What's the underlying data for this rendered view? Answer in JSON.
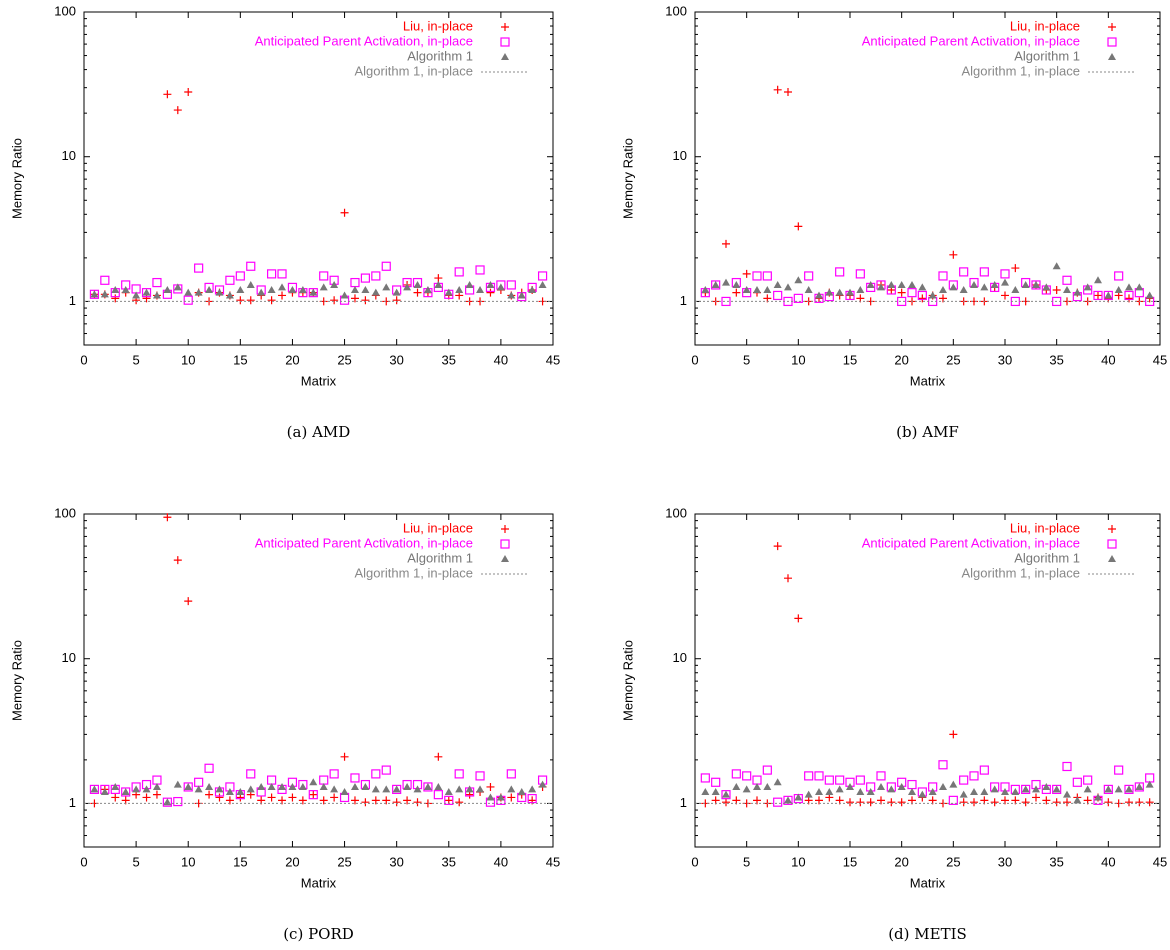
{
  "chart_data": [
    {
      "type": "scatter",
      "caption": "(a) AMD",
      "xlabel": "Matrix",
      "ylabel": "Memory Ratio",
      "ylog": true,
      "legend": "upper right",
      "xlim": [
        0,
        45
      ],
      "xticks": [
        0,
        5,
        10,
        15,
        20,
        25,
        30,
        35,
        40,
        45
      ],
      "ylim": [
        0.5,
        100
      ],
      "yticks": [
        1,
        10,
        100
      ],
      "x": [
        1,
        2,
        3,
        4,
        5,
        6,
        7,
        8,
        9,
        10,
        11,
        12,
        13,
        14,
        15,
        16,
        17,
        18,
        19,
        20,
        21,
        22,
        23,
        24,
        25,
        26,
        27,
        28,
        29,
        30,
        31,
        32,
        33,
        34,
        35,
        36,
        37,
        38,
        39,
        40,
        41,
        42,
        43,
        44
      ],
      "series": [
        {
          "name": "Liu, in-place",
          "color": "#ff0000",
          "marker": "plus",
          "values": [
            1.12,
            1.12,
            1.05,
            1.15,
            1.02,
            1.05,
            1.1,
            27,
            21,
            28,
            1.15,
            1.0,
            1.15,
            1.1,
            1.02,
            1.02,
            1.1,
            1.02,
            1.1,
            1.15,
            1.15,
            1.15,
            1.0,
            1.02,
            4.1,
            1.05,
            1.02,
            1.1,
            1.0,
            1.02,
            1.3,
            1.15,
            1.15,
            1.45,
            1.1,
            1.1,
            1.0,
            1.0,
            1.15,
            1.2,
            1.1,
            1.15,
            1.2,
            1.0
          ]
        },
        {
          "name": "Anticipated Parent Activation, in-place",
          "color": "#ff00ff",
          "marker": "square",
          "values": [
            1.12,
            1.4,
            1.15,
            1.3,
            1.22,
            1.15,
            1.35,
            1.12,
            1.22,
            1.02,
            1.7,
            1.25,
            1.2,
            1.4,
            1.5,
            1.75,
            1.2,
            1.55,
            1.55,
            1.25,
            1.15,
            1.15,
            1.5,
            1.4,
            1.02,
            1.35,
            1.45,
            1.5,
            1.75,
            1.2,
            1.35,
            1.35,
            1.15,
            1.25,
            1.12,
            1.6,
            1.2,
            1.65,
            1.25,
            1.3,
            1.3,
            1.08,
            1.25,
            1.5
          ]
        },
        {
          "name": "Algorithm 1",
          "color": "#777777",
          "marker": "triangle",
          "values": [
            1.12,
            1.12,
            1.2,
            1.2,
            1.1,
            1.15,
            1.1,
            1.2,
            1.25,
            1.15,
            1.15,
            1.2,
            1.15,
            1.1,
            1.2,
            1.3,
            1.15,
            1.2,
            1.25,
            1.2,
            1.2,
            1.15,
            1.25,
            1.3,
            1.1,
            1.2,
            1.2,
            1.15,
            1.25,
            1.15,
            1.25,
            1.3,
            1.2,
            1.3,
            1.15,
            1.2,
            1.3,
            1.2,
            1.3,
            1.25,
            1.1,
            1.1,
            1.2,
            1.3
          ]
        },
        {
          "name": "Algorithm 1, in-place",
          "color": "#888888",
          "marker": "dotted",
          "x": [
            0,
            45
          ],
          "values": [
            1,
            1
          ]
        }
      ]
    },
    {
      "type": "scatter",
      "caption": "(b) AMF",
      "xlabel": "Matrix",
      "ylabel": "Memory Ratio",
      "ylog": true,
      "legend": "upper right",
      "xlim": [
        0,
        45
      ],
      "xticks": [
        0,
        5,
        10,
        15,
        20,
        25,
        30,
        35,
        40,
        45
      ],
      "ylim": [
        0.5,
        100
      ],
      "yticks": [
        1,
        10,
        100
      ],
      "x": [
        1,
        2,
        3,
        4,
        5,
        6,
        7,
        8,
        9,
        10,
        11,
        12,
        13,
        14,
        15,
        16,
        17,
        18,
        19,
        20,
        21,
        22,
        23,
        24,
        25,
        26,
        27,
        28,
        29,
        30,
        31,
        32,
        33,
        34,
        35,
        36,
        37,
        38,
        39,
        40,
        41,
        42,
        43,
        44
      ],
      "series": [
        {
          "name": "Liu, in-place",
          "color": "#ff0000",
          "marker": "plus",
          "values": [
            1.15,
            1.0,
            2.5,
            1.15,
            1.55,
            1.15,
            1.05,
            29,
            28,
            3.3,
            1.0,
            1.05,
            1.15,
            1.1,
            1.1,
            1.05,
            1.0,
            1.3,
            1.2,
            1.15,
            1.0,
            1.05,
            1.1,
            1.05,
            2.1,
            1.0,
            1.0,
            1.0,
            1.25,
            1.1,
            1.7,
            1.0,
            1.3,
            1.2,
            1.2,
            1.0,
            1.15,
            1.0,
            1.1,
            1.05,
            1.1,
            1.05,
            1.0,
            1.05
          ]
        },
        {
          "name": "Anticipated Parent Activation, in-place",
          "color": "#ff00ff",
          "marker": "square",
          "values": [
            1.15,
            1.3,
            1.0,
            1.35,
            1.15,
            1.5,
            1.5,
            1.1,
            1.0,
            1.05,
            1.5,
            1.05,
            1.08,
            1.6,
            1.1,
            1.55,
            1.25,
            1.3,
            1.2,
            1.0,
            1.15,
            1.1,
            1.0,
            1.5,
            1.3,
            1.6,
            1.35,
            1.6,
            1.25,
            1.55,
            1.0,
            1.35,
            1.3,
            1.2,
            1.0,
            1.4,
            1.08,
            1.2,
            1.1,
            1.1,
            1.5,
            1.1,
            1.15,
            1.0
          ]
        },
        {
          "name": "Algorithm 1",
          "color": "#777777",
          "marker": "triangle",
          "values": [
            1.2,
            1.3,
            1.35,
            1.3,
            1.2,
            1.2,
            1.2,
            1.3,
            1.25,
            1.4,
            1.2,
            1.1,
            1.15,
            1.15,
            1.15,
            1.2,
            1.3,
            1.25,
            1.3,
            1.3,
            1.3,
            1.25,
            1.1,
            1.2,
            1.25,
            1.2,
            1.3,
            1.25,
            1.3,
            1.35,
            1.2,
            1.3,
            1.3,
            1.25,
            1.75,
            1.2,
            1.15,
            1.25,
            1.4,
            1.1,
            1.2,
            1.25,
            1.25,
            1.1
          ]
        },
        {
          "name": "Algorithm 1, in-place",
          "color": "#888888",
          "marker": "dotted",
          "x": [
            0,
            45
          ],
          "values": [
            1,
            1
          ]
        }
      ]
    },
    {
      "type": "scatter",
      "caption": "(c) PORD",
      "xlabel": "Matrix",
      "ylabel": "Memory Ratio",
      "ylog": true,
      "legend": "upper right",
      "xlim": [
        0,
        45
      ],
      "xticks": [
        0,
        5,
        10,
        15,
        20,
        25,
        30,
        35,
        40,
        45
      ],
      "ylim": [
        0.5,
        100
      ],
      "yticks": [
        1,
        10,
        100
      ],
      "x": [
        1,
        2,
        3,
        4,
        5,
        6,
        7,
        8,
        9,
        10,
        11,
        12,
        13,
        14,
        15,
        16,
        17,
        18,
        19,
        20,
        21,
        22,
        23,
        24,
        25,
        26,
        27,
        28,
        29,
        30,
        31,
        32,
        33,
        34,
        35,
        36,
        37,
        38,
        39,
        40,
        41,
        42,
        43,
        44
      ],
      "series": [
        {
          "name": "Liu, in-place",
          "color": "#ff0000",
          "marker": "plus",
          "values": [
            1.0,
            1.25,
            1.1,
            1.05,
            1.15,
            1.1,
            1.15,
            95,
            48,
            25,
            1.0,
            1.15,
            1.1,
            1.05,
            1.1,
            1.15,
            1.05,
            1.1,
            1.05,
            1.1,
            1.05,
            1.15,
            1.05,
            1.1,
            2.1,
            1.05,
            1.02,
            1.05,
            1.05,
            1.02,
            1.05,
            1.02,
            1.0,
            2.1,
            1.05,
            1.02,
            1.15,
            1.2,
            1.3,
            1.1,
            1.1,
            1.15,
            1.05,
            1.3
          ]
        },
        {
          "name": "Anticipated Parent Activation, in-place",
          "color": "#ff00ff",
          "marker": "square",
          "values": [
            1.25,
            1.25,
            1.25,
            1.2,
            1.3,
            1.35,
            1.45,
            1.02,
            1.03,
            1.3,
            1.4,
            1.75,
            1.2,
            1.3,
            1.15,
            1.6,
            1.2,
            1.45,
            1.25,
            1.4,
            1.35,
            1.15,
            1.45,
            1.6,
            1.1,
            1.5,
            1.35,
            1.6,
            1.7,
            1.25,
            1.35,
            1.35,
            1.3,
            1.15,
            1.05,
            1.6,
            1.2,
            1.55,
            1.02,
            1.05,
            1.6,
            1.1,
            1.08,
            1.45
          ]
        },
        {
          "name": "Algorithm 1",
          "color": "#777777",
          "marker": "triangle",
          "values": [
            1.25,
            1.2,
            1.3,
            1.2,
            1.25,
            1.25,
            1.3,
            1.02,
            1.35,
            1.3,
            1.25,
            1.3,
            1.25,
            1.2,
            1.2,
            1.25,
            1.3,
            1.3,
            1.3,
            1.3,
            1.3,
            1.4,
            1.3,
            1.25,
            1.2,
            1.3,
            1.3,
            1.25,
            1.25,
            1.25,
            1.3,
            1.25,
            1.3,
            1.3,
            1.2,
            1.25,
            1.25,
            1.25,
            1.1,
            1.1,
            1.25,
            1.2,
            1.25,
            1.35
          ]
        },
        {
          "name": "Algorithm 1, in-place",
          "color": "#888888",
          "marker": "dotted",
          "x": [
            0,
            45
          ],
          "values": [
            1,
            1
          ]
        }
      ]
    },
    {
      "type": "scatter",
      "caption": "(d) METIS",
      "xlabel": "Matrix",
      "ylabel": "Memory Ratio",
      "ylog": true,
      "legend": "upper right",
      "xlim": [
        0,
        45
      ],
      "xticks": [
        0,
        5,
        10,
        15,
        20,
        25,
        30,
        35,
        40,
        45
      ],
      "ylim": [
        0.5,
        100
      ],
      "yticks": [
        1,
        10,
        100
      ],
      "x": [
        1,
        2,
        3,
        4,
        5,
        6,
        7,
        8,
        9,
        10,
        11,
        12,
        13,
        14,
        15,
        16,
        17,
        18,
        19,
        20,
        21,
        22,
        23,
        24,
        25,
        26,
        27,
        28,
        29,
        30,
        31,
        32,
        33,
        34,
        35,
        36,
        37,
        38,
        39,
        40,
        41,
        42,
        43,
        44
      ],
      "series": [
        {
          "name": "Liu, in-place",
          "color": "#ff0000",
          "marker": "plus",
          "values": [
            1.0,
            1.05,
            1.02,
            1.05,
            1.0,
            1.05,
            1.0,
            60,
            36,
            19,
            1.05,
            1.05,
            1.1,
            1.05,
            1.02,
            1.02,
            1.02,
            1.05,
            1.02,
            1.02,
            1.05,
            1.1,
            1.05,
            1.0,
            3.0,
            1.02,
            1.02,
            1.05,
            1.02,
            1.05,
            1.05,
            1.02,
            1.1,
            1.05,
            1.02,
            1.02,
            1.1,
            1.05,
            1.1,
            1.02,
            1.0,
            1.02,
            1.02,
            1.02
          ]
        },
        {
          "name": "Anticipated Parent Activation, in-place",
          "color": "#ff00ff",
          "marker": "square",
          "values": [
            1.5,
            1.4,
            1.15,
            1.6,
            1.55,
            1.45,
            1.7,
            1.02,
            1.05,
            1.08,
            1.55,
            1.55,
            1.45,
            1.45,
            1.4,
            1.45,
            1.3,
            1.55,
            1.3,
            1.4,
            1.35,
            1.2,
            1.3,
            1.85,
            1.05,
            1.45,
            1.55,
            1.7,
            1.3,
            1.3,
            1.25,
            1.25,
            1.35,
            1.25,
            1.25,
            1.8,
            1.4,
            1.45,
            1.05,
            1.25,
            1.7,
            1.25,
            1.3,
            1.5
          ]
        },
        {
          "name": "Algorithm 1",
          "color": "#777777",
          "marker": "triangle",
          "values": [
            1.2,
            1.2,
            1.15,
            1.3,
            1.25,
            1.3,
            1.3,
            1.4,
            1.05,
            1.1,
            1.15,
            1.2,
            1.2,
            1.25,
            1.3,
            1.2,
            1.2,
            1.3,
            1.25,
            1.3,
            1.2,
            1.15,
            1.2,
            1.3,
            1.35,
            1.15,
            1.2,
            1.2,
            1.25,
            1.2,
            1.2,
            1.25,
            1.25,
            1.3,
            1.25,
            1.15,
            1.05,
            1.25,
            1.1,
            1.25,
            1.25,
            1.25,
            1.3,
            1.35
          ]
        },
        {
          "name": "Algorithm 1, in-place",
          "color": "#888888",
          "marker": "dotted",
          "x": [
            0,
            45
          ],
          "values": [
            1,
            1
          ]
        }
      ]
    }
  ]
}
